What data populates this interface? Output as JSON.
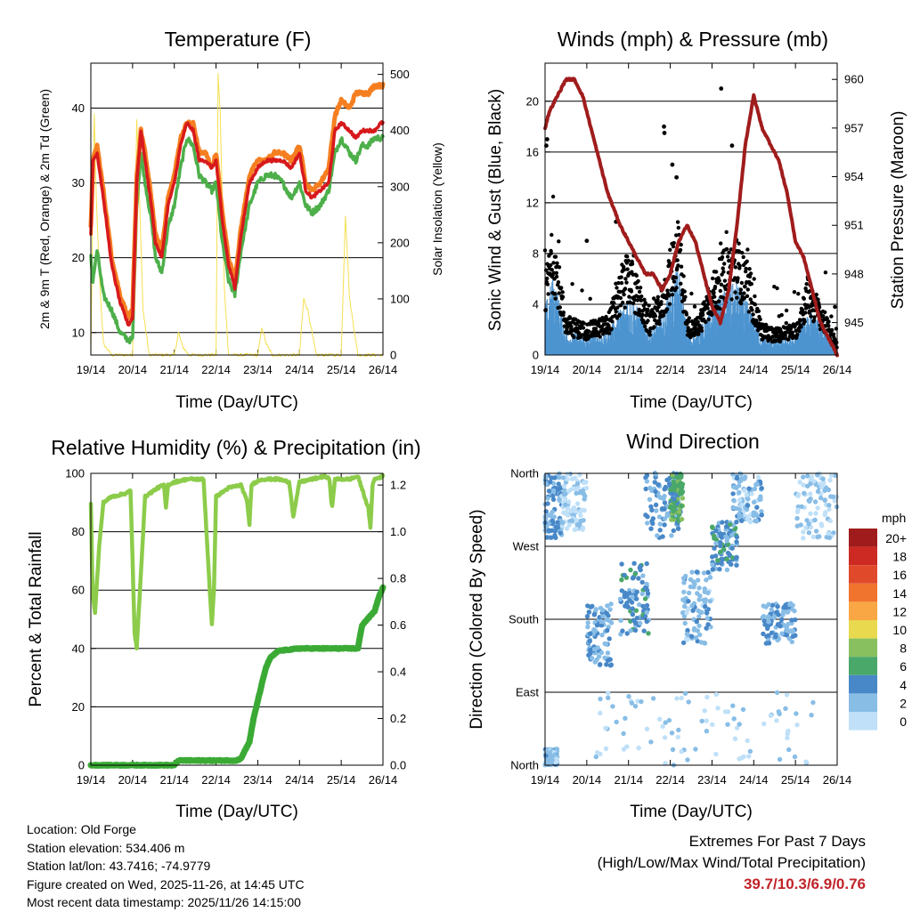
{
  "colors": {
    "temp_2m": "#d7191c",
    "temp_9m": "#f57f20",
    "dewpoint": "#4daf4a",
    "solar": "#f5e050",
    "pressure": "#a01c1c",
    "wind": "#4d94d0",
    "gust": "#000000",
    "rh": "#8ccc4a",
    "precip": "#3aaa35",
    "gridline": "#000000",
    "extremes": "#c0242a"
  },
  "x_ticks": [
    "19/14",
    "20/14",
    "21/14",
    "22/14",
    "23/14",
    "24/14",
    "25/14",
    "26/14"
  ],
  "chart_data": [
    {
      "id": "temperature",
      "type": "line",
      "title": "Temperature (F)",
      "xlabel": "Time (Day/UTC)",
      "ylabel": "2m & 9m T (Red, Orange) & 2m Td (Green)",
      "ylabel_right": "Solar Insolation (Yellow)",
      "ylim": [
        7,
        46
      ],
      "ylim_right": [
        0,
        520
      ],
      "yticks": [
        10,
        20,
        30,
        40
      ],
      "yticks_right": [
        0,
        100,
        200,
        300,
        400,
        500
      ],
      "x_days": [
        0,
        0.05,
        0.15,
        0.3,
        0.5,
        0.7,
        0.9,
        1.0,
        1.1,
        1.2,
        1.3,
        1.45,
        1.55,
        1.7,
        1.85,
        2.0,
        2.15,
        2.3,
        2.45,
        2.6,
        2.75,
        2.9,
        3.0,
        3.15,
        3.3,
        3.45,
        3.6,
        3.8,
        4.0,
        4.2,
        4.4,
        4.6,
        4.8,
        5.0,
        5.15,
        5.3,
        5.5,
        5.7,
        5.85,
        6.0,
        6.2,
        6.35,
        6.5,
        6.65,
        6.8,
        6.95,
        7.0
      ],
      "series": [
        {
          "name": "2m T",
          "values": [
            23,
            33,
            34,
            28,
            19,
            14,
            11,
            12,
            30,
            37,
            33,
            27,
            22,
            20,
            27,
            30,
            35,
            38,
            37,
            33,
            33,
            32,
            33,
            25,
            19,
            16,
            23,
            30,
            32,
            33,
            33,
            33,
            32,
            34,
            29,
            28,
            29,
            30,
            37,
            38,
            37,
            36,
            37,
            37,
            37,
            38,
            38
          ]
        },
        {
          "name": "9m T",
          "values": [
            24,
            33,
            35,
            29,
            20,
            15,
            12,
            13,
            31,
            37,
            34,
            28,
            23,
            21,
            28,
            31,
            36,
            38,
            38,
            34,
            34,
            32,
            34,
            26,
            20,
            17,
            24,
            31,
            33,
            33,
            34,
            34,
            33,
            35,
            30,
            29,
            30,
            32,
            39,
            41,
            40,
            42,
            42,
            42,
            43,
            43,
            43
          ]
        },
        {
          "name": "2m Td",
          "values": [
            20,
            17,
            21,
            15,
            13,
            10,
            9,
            9,
            27,
            34,
            30,
            25,
            20,
            18,
            24,
            27,
            32,
            36,
            35,
            31,
            30,
            29,
            30,
            22,
            17,
            15,
            21,
            27,
            30,
            31,
            31,
            30,
            28,
            30,
            27,
            26,
            27,
            29,
            34,
            36,
            34,
            33,
            35,
            35,
            36,
            36,
            36
          ]
        }
      ],
      "solar": {
        "name": "Solar Insolation",
        "x_days": [
          0,
          0.08,
          0.12,
          0.2,
          0.3,
          0.5,
          1.0,
          1.1,
          1.15,
          1.25,
          1.4,
          2.0,
          2.1,
          2.2,
          2.35,
          3.0,
          3.05,
          3.1,
          3.2,
          3.3,
          4.0,
          4.1,
          4.2,
          4.35,
          5.0,
          5.1,
          5.2,
          5.4,
          6.0,
          6.1,
          6.2,
          6.4,
          7.0
        ],
        "values": [
          0,
          440,
          300,
          150,
          20,
          0,
          0,
          420,
          320,
          80,
          0,
          0,
          40,
          15,
          0,
          0,
          500,
          430,
          120,
          0,
          0,
          50,
          20,
          0,
          0,
          100,
          80,
          0,
          0,
          250,
          100,
          0,
          0
        ]
      }
    },
    {
      "id": "winds",
      "type": "line",
      "title": "Winds (mph) & Pressure (mb)",
      "xlabel": "Time (Day/UTC)",
      "ylabel": "Sonic Wind & Gust (Blue, Black)",
      "ylabel_right": "Station Pressure (Maroon)",
      "ylim": [
        0,
        23
      ],
      "ylim_right": [
        943,
        961
      ],
      "yticks": [
        0,
        4,
        8,
        12,
        16,
        20
      ],
      "yticks_right": [
        945,
        948,
        951,
        954,
        957,
        960
      ],
      "pressure": {
        "x_days": [
          0,
          0.1,
          0.3,
          0.5,
          0.7,
          0.9,
          1.0,
          1.2,
          1.5,
          1.8,
          2.0,
          2.2,
          2.4,
          2.6,
          2.8,
          3.0,
          3.2,
          3.4,
          3.6,
          3.8,
          4.0,
          4.2,
          4.4,
          4.6,
          4.8,
          5.0,
          5.2,
          5.4,
          5.6,
          5.8,
          6.0,
          6.2,
          6.4,
          6.6,
          6.8,
          7.0
        ],
        "values": [
          957,
          958,
          959,
          960,
          960,
          959,
          958,
          956,
          953,
          951,
          950,
          949,
          948,
          948,
          947,
          948,
          950,
          951,
          950,
          948,
          946,
          945,
          947,
          951,
          956,
          959,
          957,
          956,
          955,
          953,
          950,
          949,
          947,
          945,
          944,
          943
        ]
      },
      "wind_profile": {
        "x_days": [
          0,
          0.2,
          0.5,
          1.0,
          1.5,
          1.8,
          2.0,
          2.2,
          2.5,
          2.8,
          3.0,
          3.2,
          3.4,
          3.6,
          4.0,
          4.3,
          4.6,
          4.9,
          5.2,
          5.5,
          6.0,
          6.3,
          6.6,
          7.0
        ],
        "values": [
          3,
          5,
          1.5,
          1.2,
          1.5,
          3,
          4,
          3,
          1.5,
          2.5,
          4,
          5.5,
          1.5,
          1.2,
          3,
          4,
          4.5,
          3,
          1.2,
          1,
          1.2,
          3,
          2,
          0.5
        ]
      },
      "gust_outliers": [
        [
          0.03,
          16.5
        ],
        [
          0.05,
          17
        ],
        [
          2.85,
          18
        ],
        [
          2.86,
          17.5
        ],
        [
          4.22,
          21
        ],
        [
          4.48,
          16.5
        ],
        [
          3.05,
          15
        ],
        [
          3.15,
          14
        ],
        [
          1.0,
          9
        ],
        [
          1.7,
          10.5
        ]
      ]
    },
    {
      "id": "humidity",
      "type": "line",
      "title": "Relative Humidity (%) & Precipitation (in)",
      "xlabel": "Time (Day/UTC)",
      "ylabel": "Percent & Total Rainfall",
      "ylim": [
        0,
        100
      ],
      "ylim_right": [
        0,
        1.25
      ],
      "yticks": [
        0,
        20,
        40,
        60,
        80,
        100
      ],
      "yticks_right": [
        0.0,
        0.2,
        0.4,
        0.6,
        0.8,
        1.0,
        1.2
      ],
      "series": [
        {
          "name": "Relative Humidity",
          "x_days": [
            0,
            0.04,
            0.1,
            0.2,
            0.3,
            0.5,
            0.8,
            0.95,
            1.0,
            1.05,
            1.1,
            1.3,
            1.6,
            1.75,
            1.8,
            1.85,
            2.0,
            2.3,
            2.5,
            2.7,
            2.85,
            2.9,
            2.95,
            3.0,
            3.3,
            3.6,
            3.75,
            3.8,
            3.85,
            3.95,
            4.1,
            4.2,
            4.5,
            4.75,
            4.8,
            4.85,
            5.0,
            5.3,
            5.6,
            5.72,
            5.78,
            5.85,
            6.0,
            6.2,
            6.4,
            6.65,
            6.7,
            6.75,
            6.8,
            7.0
          ],
          "values": [
            90,
            60,
            52,
            75,
            90,
            92,
            93,
            94,
            70,
            45,
            40,
            92,
            95,
            96,
            88,
            96,
            97,
            98,
            98,
            98,
            60,
            48,
            60,
            92,
            95,
            96,
            90,
            82,
            96,
            97,
            98,
            98,
            98,
            97,
            92,
            85,
            97,
            98,
            99,
            98,
            88,
            98,
            98,
            98,
            99,
            88,
            81,
            96,
            98,
            99
          ]
        },
        {
          "name": "Total Precipitation",
          "x_days": [
            0,
            0.5,
            1.0,
            1.5,
            2.0,
            2.1,
            2.5,
            3.0,
            3.5,
            3.6,
            3.8,
            3.9,
            4.1,
            4.2,
            4.3,
            4.5,
            5.0,
            5.5,
            6.0,
            6.4,
            6.45,
            6.5,
            6.6,
            6.8,
            6.9,
            7.0
          ],
          "values": [
            0,
            0,
            0,
            0,
            0,
            0.02,
            0.02,
            0.02,
            0.02,
            0.03,
            0.1,
            0.2,
            0.35,
            0.42,
            0.46,
            0.49,
            0.5,
            0.5,
            0.5,
            0.5,
            0.55,
            0.6,
            0.62,
            0.66,
            0.72,
            0.76
          ]
        }
      ]
    },
    {
      "id": "direction",
      "type": "scatter",
      "title": "Wind Direction",
      "xlabel": "Time (Day/UTC)",
      "ylabel": "Direction (Colored By Speed)",
      "ylim": [
        0,
        360
      ],
      "yticks": [
        0,
        90,
        180,
        270,
        360
      ],
      "ytick_labels": [
        "North",
        "East",
        "South",
        "West",
        "North"
      ],
      "legend": {
        "title": "mph",
        "labels": [
          "20+",
          "18",
          "16",
          "14",
          "12",
          "10",
          "8",
          "6",
          "4",
          "2",
          "0"
        ],
        "colors": [
          "#a01c1c",
          "#cc2a22",
          "#e04a2a",
          "#f0742e",
          "#f9a744",
          "#e8d94e",
          "#88c060",
          "#4aa86a",
          "#4888c8",
          "#88bde6",
          "#bfe0f8"
        ]
      },
      "clusters": [
        {
          "x_days": [
            0,
            0.4
          ],
          "dir": [
            280,
            360
          ],
          "speed": 3
        },
        {
          "x_days": [
            0,
            0.3
          ],
          "dir": [
            0,
            20
          ],
          "speed": 2
        },
        {
          "x_days": [
            0.4,
            1.0
          ],
          "dir": [
            290,
            360
          ],
          "speed": 1
        },
        {
          "x_days": [
            1.0,
            1.6
          ],
          "dir": [
            120,
            200
          ],
          "speed": 3
        },
        {
          "x_days": [
            1.8,
            2.5
          ],
          "dir": [
            160,
            250
          ],
          "speed": 4
        },
        {
          "x_days": [
            2.4,
            3.2
          ],
          "dir": [
            280,
            360
          ],
          "speed": 3
        },
        {
          "x_days": [
            3.0,
            3.3
          ],
          "dir": [
            300,
            360
          ],
          "speed": 6
        },
        {
          "x_days": [
            3.3,
            4.0
          ],
          "dir": [
            150,
            240
          ],
          "speed": 2
        },
        {
          "x_days": [
            4.0,
            4.6
          ],
          "dir": [
            240,
            300
          ],
          "speed": 4
        },
        {
          "x_days": [
            4.5,
            5.2
          ],
          "dir": [
            300,
            360
          ],
          "speed": 2
        },
        {
          "x_days": [
            5.2,
            6.0
          ],
          "dir": [
            150,
            200
          ],
          "speed": 3
        },
        {
          "x_days": [
            6.0,
            7.0
          ],
          "dir": [
            280,
            360
          ],
          "speed": 1
        },
        {
          "x_days": [
            1.2,
            6.5
          ],
          "dir": [
            0,
            90
          ],
          "speed": 1
        }
      ]
    }
  ],
  "info": {
    "location": "Location: Old Forge",
    "elevation": "Station elevation: 534.406 m",
    "latlon": "Station lat/lon: 43.7416; -74.9779",
    "created": "Figure created on Wed, 2025-11-26, at 14:45 UTC",
    "recent": "Most recent data timestamp: 2025/11/26 14:15:00"
  },
  "extremes": {
    "line1": "Extremes For Past 7 Days",
    "line2": "(High/Low/Max Wind/Total Precipitation)",
    "values": "39.7/10.3/6.9/0.76"
  }
}
